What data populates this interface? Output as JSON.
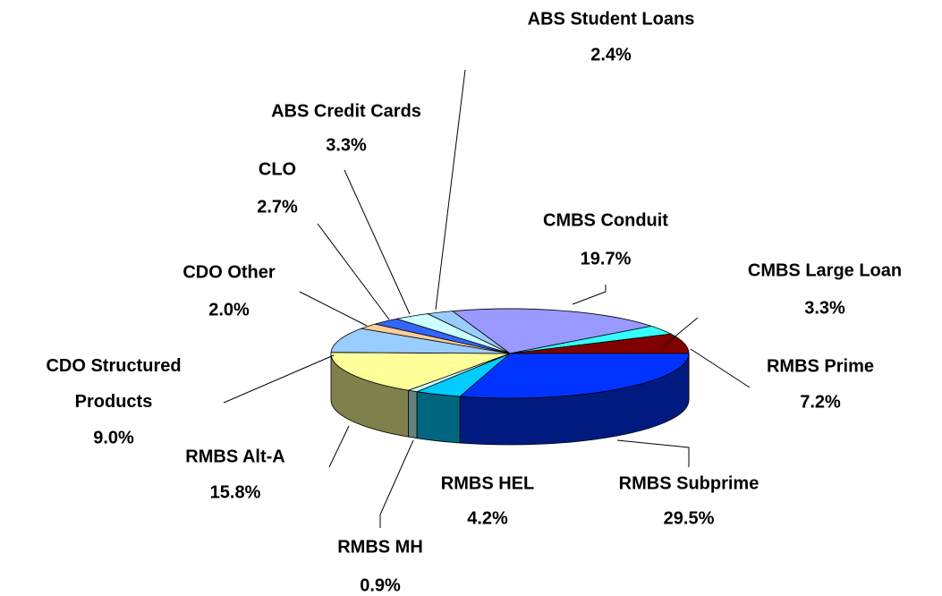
{
  "chart_data": {
    "type": "pie",
    "categories": [
      "CMBS Conduit",
      "CMBS Large Loan",
      "RMBS Prime",
      "RMBS Subprime",
      "RMBS HEL",
      "RMBS MH",
      "RMBS Alt-A",
      "CDO Structured Products",
      "CDO Other",
      "CLO",
      "ABS Credit Cards",
      "ABS Student Loans"
    ],
    "values": [
      19.7,
      3.3,
      7.2,
      29.5,
      4.2,
      0.9,
      15.8,
      9.0,
      2.0,
      2.7,
      3.3,
      2.4
    ],
    "value_labels": [
      "19.7%",
      "3.3%",
      "7.2%",
      "29.5%",
      "4.2%",
      "0.9%",
      "15.8%",
      "9.0%",
      "2.0%",
      "2.7%",
      "3.3%",
      "2.4%"
    ],
    "colors": [
      "#9999ff",
      "#33ffff",
      "#800000",
      "#0033ff",
      "#00ccff",
      "#ccffff",
      "#ffff99",
      "#99ccff",
      "#ffcc99",
      "#3366ff",
      "#ccffff",
      "#99ccff"
    ]
  }
}
